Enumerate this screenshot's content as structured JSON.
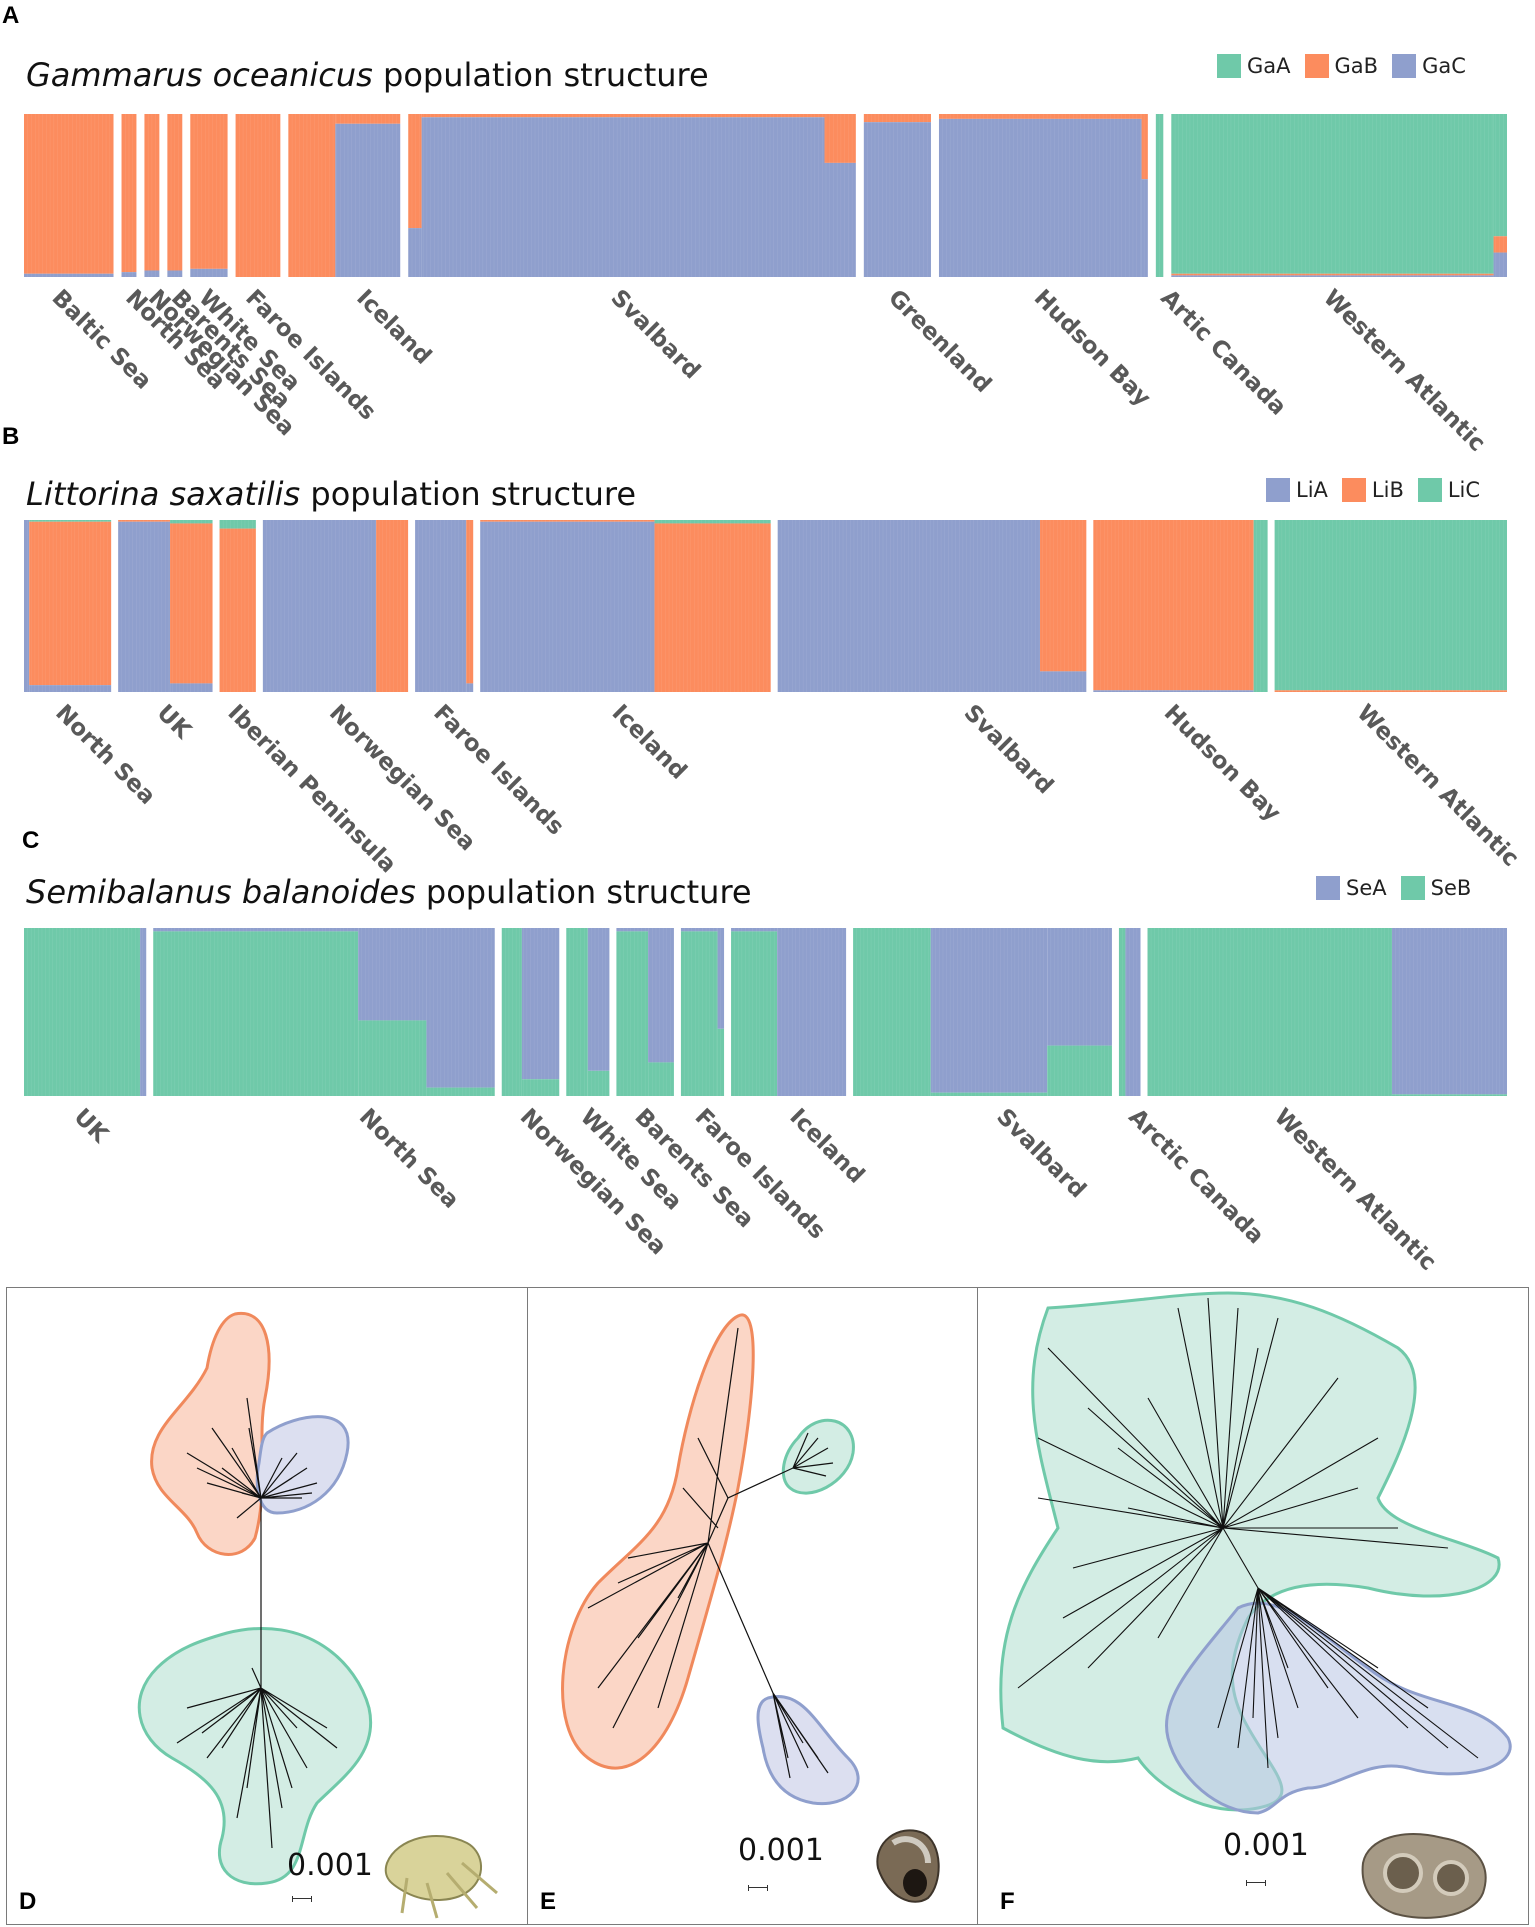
{
  "colors": {
    "green": "#6fc9a9",
    "orange": "#fc8c5e",
    "blue": "#8f9fcd",
    "green_fill": "#d3ede4",
    "orange_fill": "#fbd6c6",
    "blue_fill": "#dcdff0",
    "branch": "#111111"
  },
  "chart_data": [
    {
      "id": "A",
      "type": "bar",
      "subtype": "stacked-admixture",
      "species": "Gammarus oceanicus",
      "title_suffix": " population structure",
      "legend": [
        {
          "name": "GaA",
          "color": "#6fc9a9"
        },
        {
          "name": "GaB",
          "color": "#fc8c5e"
        },
        {
          "name": "GaC",
          "color": "#8f9fcd"
        }
      ],
      "series_order": [
        "GaA",
        "GaB",
        "GaC"
      ],
      "ylim": [
        0,
        1
      ],
      "populations": [
        {
          "label": "Baltic Sea",
          "n": 24,
          "segments": [
            [
              1,
              {
                "GaA": 0.0,
                "GaB": 0.98,
                "GaC": 0.02
              }
            ]
          ]
        },
        {
          "label": "North Sea",
          "n": 4,
          "segments": [
            [
              1,
              {
                "GaA": 0.0,
                "GaB": 0.97,
                "GaC": 0.03
              }
            ]
          ]
        },
        {
          "label": "Norwegian Sea",
          "n": 4,
          "segments": [
            [
              1,
              {
                "GaA": 0.0,
                "GaB": 0.96,
                "GaC": 0.04
              }
            ]
          ]
        },
        {
          "label": "Barents Sea",
          "n": 4,
          "segments": [
            [
              1,
              {
                "GaA": 0.0,
                "GaB": 0.96,
                "GaC": 0.04
              }
            ]
          ]
        },
        {
          "label": "White Sea",
          "n": 10,
          "segments": [
            [
              1,
              {
                "GaA": 0.0,
                "GaB": 0.95,
                "GaC": 0.05
              }
            ]
          ]
        },
        {
          "label": "Faroe Islands",
          "n": 12,
          "segments": [
            [
              1,
              {
                "GaA": 0.0,
                "GaB": 1.0,
                "GaC": 0.0
              }
            ]
          ]
        },
        {
          "label": "Iceland",
          "n": 30,
          "segments": [
            [
              0.42,
              {
                "GaA": 0.0,
                "GaB": 1.0,
                "GaC": 0.0
              }
            ],
            [
              0.58,
              {
                "GaA": 0.0,
                "GaB": 0.06,
                "GaC": 0.94
              }
            ]
          ]
        },
        {
          "label": "Svalbard",
          "n": 120,
          "segments": [
            [
              0.03,
              {
                "GaA": 0.0,
                "GaB": 0.7,
                "GaC": 0.3
              }
            ],
            [
              0.9,
              {
                "GaA": 0.0,
                "GaB": 0.02,
                "GaC": 0.98
              }
            ],
            [
              0.07,
              {
                "GaA": 0.0,
                "GaB": 0.3,
                "GaC": 0.7
              }
            ]
          ]
        },
        {
          "label": "Greenland",
          "n": 18,
          "segments": [
            [
              1,
              {
                "GaA": 0.0,
                "GaB": 0.05,
                "GaC": 0.95
              }
            ]
          ]
        },
        {
          "label": "Hudson Bay",
          "n": 56,
          "segments": [
            [
              0.97,
              {
                "GaA": 0.0,
                "GaB": 0.03,
                "GaC": 0.97
              }
            ],
            [
              0.03,
              {
                "GaA": 0.0,
                "GaB": 0.4,
                "GaC": 0.6
              }
            ]
          ]
        },
        {
          "label": "Artic Canada",
          "n": 2,
          "segments": [
            [
              1,
              {
                "GaA": 1.0,
                "GaB": 0.0,
                "GaC": 0.0
              }
            ]
          ]
        },
        {
          "label": "Western Atlantic",
          "n": 90,
          "segments": [
            [
              0.96,
              {
                "GaA": 0.98,
                "GaB": 0.01,
                "GaC": 0.01
              }
            ],
            [
              0.04,
              {
                "GaA": 0.75,
                "GaB": 0.1,
                "GaC": 0.15
              }
            ]
          ]
        }
      ]
    },
    {
      "id": "B",
      "type": "bar",
      "subtype": "stacked-admixture",
      "species": "Littorina saxatilis",
      "title_suffix": " population structure",
      "legend": [
        {
          "name": "LiA",
          "color": "#8f9fcd"
        },
        {
          "name": "LiB",
          "color": "#fc8c5e"
        },
        {
          "name": "LiC",
          "color": "#6fc9a9"
        }
      ],
      "series_order": [
        "LiC",
        "LiB",
        "LiA"
      ],
      "ylim": [
        0,
        1
      ],
      "populations": [
        {
          "label": "North Sea",
          "n": 24,
          "segments": [
            [
              0.06,
              {
                "LiA": 1.0,
                "LiB": 0.0,
                "LiC": 0.0
              }
            ],
            [
              0.94,
              {
                "LiA": 0.04,
                "LiB": 0.95,
                "LiC": 0.01
              }
            ]
          ]
        },
        {
          "label": "UK",
          "n": 26,
          "segments": [
            [
              0.55,
              {
                "LiA": 0.99,
                "LiB": 0.01,
                "LiC": 0.0
              }
            ],
            [
              0.45,
              {
                "LiA": 0.05,
                "LiB": 0.93,
                "LiC": 0.02
              }
            ]
          ]
        },
        {
          "label": "Iberian Peninsula",
          "n": 10,
          "segments": [
            [
              1,
              {
                "LiA": 0.0,
                "LiB": 0.95,
                "LiC": 0.05
              }
            ]
          ]
        },
        {
          "label": "Norwegian Sea",
          "n": 40,
          "segments": [
            [
              0.78,
              {
                "LiA": 1.0,
                "LiB": 0.0,
                "LiC": 0.0
              }
            ],
            [
              0.22,
              {
                "LiA": 0.0,
                "LiB": 1.0,
                "LiC": 0.0
              }
            ]
          ]
        },
        {
          "label": "Faroe Islands",
          "n": 16,
          "segments": [
            [
              0.88,
              {
                "LiA": 1.0,
                "LiB": 0.0,
                "LiC": 0.0
              }
            ],
            [
              0.12,
              {
                "LiA": 0.05,
                "LiB": 0.95,
                "LiC": 0.0
              }
            ]
          ]
        },
        {
          "label": "Iceland",
          "n": 80,
          "segments": [
            [
              0.6,
              {
                "LiA": 0.99,
                "LiB": 0.01,
                "LiC": 0.0
              }
            ],
            [
              0.4,
              {
                "LiA": 0.0,
                "LiB": 0.98,
                "LiC": 0.02
              }
            ]
          ]
        },
        {
          "label": "Svalbard",
          "n": 85,
          "segments": [
            [
              0.85,
              {
                "LiA": 1.0,
                "LiB": 0.0,
                "LiC": 0.0
              }
            ],
            [
              0.15,
              {
                "LiA": 0.12,
                "LiB": 0.88,
                "LiC": 0.0
              }
            ]
          ]
        },
        {
          "label": "Hudson Bay",
          "n": 48,
          "segments": [
            [
              0.92,
              {
                "LiA": 0.01,
                "LiB": 0.99,
                "LiC": 0.0
              }
            ],
            [
              0.08,
              {
                "LiA": 0.0,
                "LiB": 0.0,
                "LiC": 1.0
              }
            ]
          ]
        },
        {
          "label": "Western Atlantic",
          "n": 64,
          "segments": [
            [
              1,
              {
                "LiA": 0.0,
                "LiB": 0.01,
                "LiC": 0.99
              }
            ]
          ]
        }
      ]
    },
    {
      "id": "C",
      "type": "bar",
      "subtype": "stacked-admixture",
      "species": "Semibalanus balanoides",
      "title_suffix": " population structure",
      "legend": [
        {
          "name": "SeA",
          "color": "#8f9fcd"
        },
        {
          "name": "SeB",
          "color": "#6fc9a9"
        }
      ],
      "series_order": [
        "SeA",
        "SeB"
      ],
      "ylim": [
        0,
        1
      ],
      "populations": [
        {
          "label": "UK",
          "n": 34,
          "segments": [
            [
              0.95,
              {
                "SeA": 0.0,
                "SeB": 1.0
              }
            ],
            [
              0.05,
              {
                "SeA": 1.0,
                "SeB": 0.0
              }
            ]
          ]
        },
        {
          "label": "North Sea",
          "n": 95,
          "segments": [
            [
              0.6,
              {
                "SeA": 0.02,
                "SeB": 0.98
              }
            ],
            [
              0.2,
              {
                "SeA": 0.55,
                "SeB": 0.45
              }
            ],
            [
              0.2,
              {
                "SeA": 0.95,
                "SeB": 0.05
              }
            ]
          ]
        },
        {
          "label": "Norwegian Sea",
          "n": 16,
          "segments": [
            [
              0.35,
              {
                "SeA": 0.0,
                "SeB": 1.0
              }
            ],
            [
              0.65,
              {
                "SeA": 0.9,
                "SeB": 0.1
              }
            ]
          ]
        },
        {
          "label": "White Sea",
          "n": 12,
          "segments": [
            [
              0.5,
              {
                "SeA": 0.0,
                "SeB": 1.0
              }
            ],
            [
              0.5,
              {
                "SeA": 0.85,
                "SeB": 0.15
              }
            ]
          ]
        },
        {
          "label": "Barents Sea",
          "n": 16,
          "segments": [
            [
              0.55,
              {
                "SeA": 0.02,
                "SeB": 0.98
              }
            ],
            [
              0.45,
              {
                "SeA": 0.8,
                "SeB": 0.2
              }
            ]
          ]
        },
        {
          "label": "Faroe Islands",
          "n": 12,
          "segments": [
            [
              0.85,
              {
                "SeA": 0.02,
                "SeB": 0.98
              }
            ],
            [
              0.15,
              {
                "SeA": 0.6,
                "SeB": 0.4
              }
            ]
          ]
        },
        {
          "label": "Iceland",
          "n": 32,
          "segments": [
            [
              0.4,
              {
                "SeA": 0.02,
                "SeB": 0.98
              }
            ],
            [
              0.6,
              {
                "SeA": 1.0,
                "SeB": 0.0
              }
            ]
          ]
        },
        {
          "label": "Svalbard",
          "n": 72,
          "segments": [
            [
              0.3,
              {
                "SeA": 0.0,
                "SeB": 1.0
              }
            ],
            [
              0.45,
              {
                "SeA": 0.98,
                "SeB": 0.02
              }
            ],
            [
              0.25,
              {
                "SeA": 0.7,
                "SeB": 0.3
              }
            ]
          ]
        },
        {
          "label": "Arctic Canada",
          "n": 6,
          "segments": [
            [
              0.3,
              {
                "SeA": 0.0,
                "SeB": 1.0
              }
            ],
            [
              0.7,
              {
                "SeA": 1.0,
                "SeB": 0.0
              }
            ]
          ]
        },
        {
          "label": "Western Atlantic",
          "n": 100,
          "segments": [
            [
              0.68,
              {
                "SeA": 0.0,
                "SeB": 1.0
              }
            ],
            [
              0.32,
              {
                "SeA": 0.99,
                "SeB": 0.01
              }
            ]
          ]
        }
      ]
    }
  ],
  "trees": [
    {
      "id": "D",
      "scale_label": "0.001",
      "clades": [
        "GaB",
        "GaC",
        "GaA"
      ]
    },
    {
      "id": "E",
      "scale_label": "0.001",
      "clades": [
        "LiB",
        "LiC",
        "LiA"
      ]
    },
    {
      "id": "F",
      "scale_label": "0.001",
      "clades": [
        "SeB",
        "SeA"
      ]
    }
  ]
}
